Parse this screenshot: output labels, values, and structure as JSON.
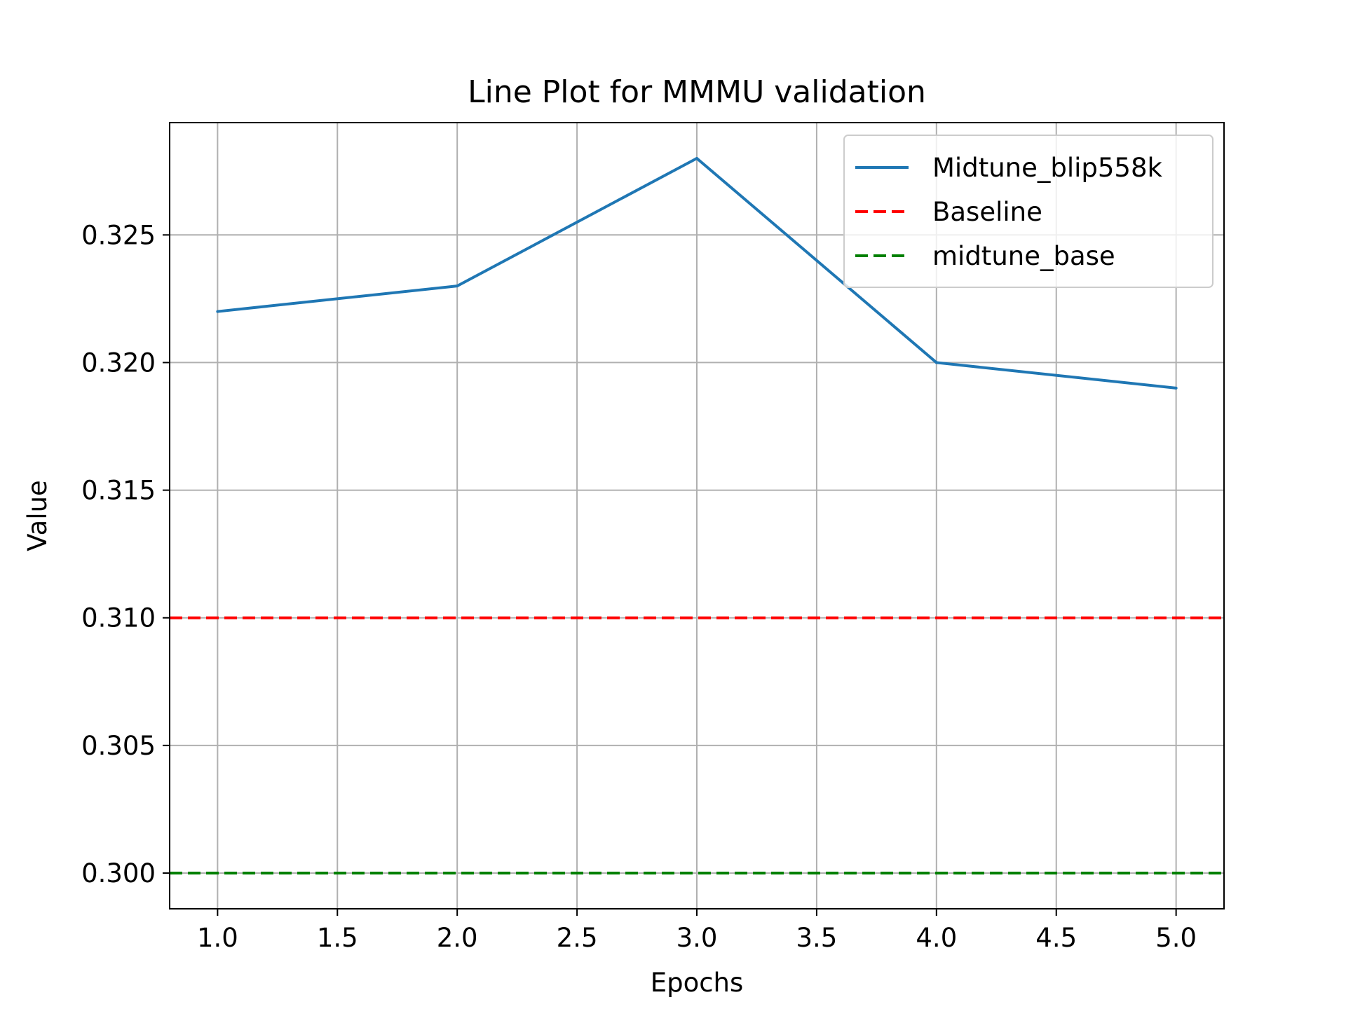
{
  "chart_data": {
    "type": "line",
    "title": "Line Plot for MMMU validation",
    "xlabel": "Epochs",
    "ylabel": "Value",
    "xlim": [
      0.8,
      5.2
    ],
    "ylim": [
      0.2986,
      0.3294
    ],
    "xticks": [
      1.0,
      1.5,
      2.0,
      2.5,
      3.0,
      3.5,
      4.0,
      4.5,
      5.0
    ],
    "xtick_labels": [
      "1.0",
      "1.5",
      "2.0",
      "2.5",
      "3.0",
      "3.5",
      "4.0",
      "4.5",
      "5.0"
    ],
    "yticks": [
      0.3,
      0.305,
      0.31,
      0.315,
      0.32,
      0.325
    ],
    "ytick_labels": [
      "0.300",
      "0.305",
      "0.310",
      "0.315",
      "0.320",
      "0.325"
    ],
    "grid": true,
    "legend_position": "top-right",
    "series": [
      {
        "name": "Midtune_blip558k",
        "color": "#1f77b4",
        "style": "solid",
        "x": [
          1,
          2,
          3,
          4,
          5
        ],
        "y": [
          0.322,
          0.323,
          0.328,
          0.32,
          0.319
        ]
      }
    ],
    "reference_lines": [
      {
        "name": "Baseline",
        "y": 0.31,
        "color": "#ff0000",
        "style": "dashed"
      },
      {
        "name": "midtune_base",
        "y": 0.3,
        "color": "#008000",
        "style": "dashed"
      }
    ]
  }
}
